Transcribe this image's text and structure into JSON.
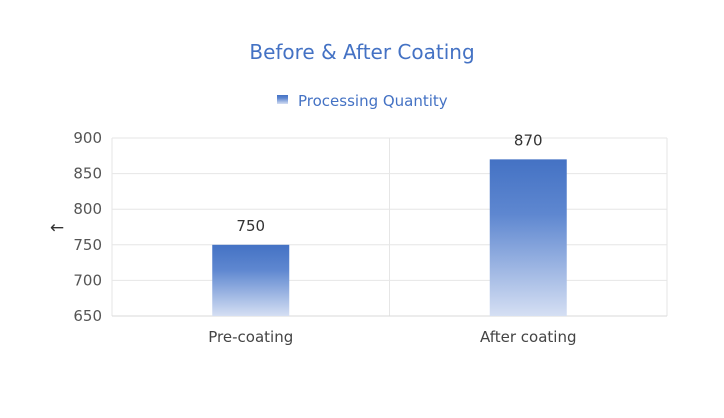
{
  "chart_data": {
    "type": "bar",
    "title": "Before & After Coating",
    "xlabel": "",
    "ylabel": "←",
    "categories": [
      "Pre-coating",
      "After coating"
    ],
    "series": [
      {
        "name": "Processing Quantity",
        "values": [
          750,
          870
        ]
      }
    ],
    "ylim": [
      650,
      900
    ],
    "yticks": [
      650,
      700,
      750,
      800,
      850,
      900
    ],
    "legend": "top",
    "grid": true,
    "colors": {
      "bar_top": "#4472c4",
      "bar_bottom": "#d5dff3",
      "title": "#4472c4",
      "grid": "#e6e6e6"
    }
  }
}
